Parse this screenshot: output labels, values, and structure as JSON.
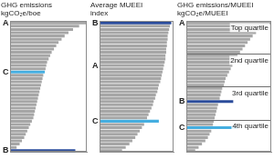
{
  "chart_data": [
    {
      "type": "bar",
      "orientation": "horizontal",
      "title": [
        "GHG emissions",
        "kgCO₂e/boe"
      ],
      "categories": [
        "A",
        null,
        null,
        null,
        null,
        null,
        null,
        null,
        null,
        null,
        null,
        null,
        null,
        null,
        null,
        "C",
        null,
        null,
        null,
        null,
        null,
        null,
        null,
        null,
        null,
        null,
        null,
        null,
        null,
        null,
        null,
        null,
        null,
        null,
        null,
        null,
        null,
        null,
        null,
        "B"
      ],
      "values": [
        100,
        90,
        82,
        76,
        71,
        67,
        63,
        60,
        57,
        54,
        52,
        50,
        48,
        47,
        46,
        45,
        43,
        42,
        41,
        40,
        39,
        38,
        37,
        36,
        35,
        34,
        33,
        32,
        31,
        30,
        28,
        26,
        24,
        22,
        20,
        18,
        15,
        12,
        8,
        85
      ],
      "colors": [
        "#a6a6a6",
        "#a6a6a6",
        "#a6a6a6",
        "#a6a6a6",
        "#a6a6a6",
        "#a6a6a6",
        "#a6a6a6",
        "#a6a6a6",
        "#a6a6a6",
        "#a6a6a6",
        "#a6a6a6",
        "#a6a6a6",
        "#a6a6a6",
        "#a6a6a6",
        "#a6a6a6",
        "#45aee0",
        "#a6a6a6",
        "#a6a6a6",
        "#a6a6a6",
        "#a6a6a6",
        "#a6a6a6",
        "#a6a6a6",
        "#a6a6a6",
        "#a6a6a6",
        "#a6a6a6",
        "#a6a6a6",
        "#a6a6a6",
        "#a6a6a6",
        "#a6a6a6",
        "#a6a6a6",
        "#a6a6a6",
        "#a6a6a6",
        "#a6a6a6",
        "#a6a6a6",
        "#a6a6a6",
        "#a6a6a6",
        "#a6a6a6",
        "#a6a6a6",
        "#a6a6a6",
        "#2b4c9b"
      ],
      "xlim": [
        0,
        100
      ],
      "tick_labels": "y",
      "grid": false
    },
    {
      "type": "bar",
      "orientation": "horizontal",
      "title": [
        "Average MUEEI",
        "index"
      ],
      "categories": [
        "B",
        null,
        null,
        null,
        null,
        null,
        null,
        null,
        null,
        null,
        null,
        null,
        null,
        "A",
        null,
        null,
        null,
        null,
        null,
        null,
        null,
        null,
        null,
        null,
        null,
        null,
        null,
        null,
        null,
        null,
        "C",
        null,
        null,
        null,
        null,
        null,
        null,
        null,
        null,
        null
      ],
      "values": [
        97,
        95,
        94,
        93,
        92,
        92,
        91,
        91,
        90,
        90,
        89,
        89,
        88,
        87,
        86,
        85,
        84,
        83,
        82,
        80,
        79,
        78,
        76,
        75,
        73,
        72,
        70,
        68,
        66,
        64,
        80,
        60,
        57,
        54,
        51,
        48,
        44,
        40,
        35,
        30
      ],
      "colors": [
        "#2b4c9b",
        "#a6a6a6",
        "#a6a6a6",
        "#a6a6a6",
        "#a6a6a6",
        "#a6a6a6",
        "#a6a6a6",
        "#a6a6a6",
        "#a6a6a6",
        "#a6a6a6",
        "#a6a6a6",
        "#a6a6a6",
        "#a6a6a6",
        "#a6a6a6",
        "#a6a6a6",
        "#a6a6a6",
        "#a6a6a6",
        "#a6a6a6",
        "#a6a6a6",
        "#a6a6a6",
        "#a6a6a6",
        "#a6a6a6",
        "#a6a6a6",
        "#a6a6a6",
        "#a6a6a6",
        "#a6a6a6",
        "#a6a6a6",
        "#a6a6a6",
        "#a6a6a6",
        "#a6a6a6",
        "#45aee0",
        "#a6a6a6",
        "#a6a6a6",
        "#a6a6a6",
        "#a6a6a6",
        "#a6a6a6",
        "#a6a6a6",
        "#a6a6a6",
        "#a6a6a6",
        "#a6a6a6"
      ],
      "xlim": [
        0,
        100
      ],
      "tick_labels": "y",
      "grid": false
    },
    {
      "type": "bar",
      "orientation": "horizontal",
      "title": [
        "GHG emissions/MUEEI",
        "kgCO₂e/MUEEI"
      ],
      "categories": [
        "A",
        null,
        null,
        null,
        null,
        null,
        null,
        null,
        null,
        null,
        null,
        null,
        null,
        null,
        null,
        null,
        null,
        null,
        null,
        null,
        null,
        null,
        null,
        null,
        "B",
        null,
        null,
        null,
        null,
        null,
        null,
        null,
        "C",
        null,
        null,
        null,
        null,
        null,
        null,
        null
      ],
      "values": [
        100,
        92,
        86,
        82,
        78,
        75,
        72,
        69,
        66,
        63,
        60,
        58,
        56,
        54,
        52,
        50,
        48,
        46,
        45,
        44,
        42,
        41,
        40,
        39,
        55,
        37,
        36,
        35,
        34,
        33,
        32,
        31,
        60,
        29,
        27,
        25,
        22,
        18,
        14,
        10
      ],
      "colors": [
        "#a6a6a6",
        "#a6a6a6",
        "#a6a6a6",
        "#a6a6a6",
        "#a6a6a6",
        "#a6a6a6",
        "#a6a6a6",
        "#a6a6a6",
        "#a6a6a6",
        "#a6a6a6",
        "#a6a6a6",
        "#a6a6a6",
        "#a6a6a6",
        "#a6a6a6",
        "#a6a6a6",
        "#a6a6a6",
        "#a6a6a6",
        "#a6a6a6",
        "#a6a6a6",
        "#a6a6a6",
        "#a6a6a6",
        "#a6a6a6",
        "#a6a6a6",
        "#a6a6a6",
        "#2b4c9b",
        "#a6a6a6",
        "#a6a6a6",
        "#a6a6a6",
        "#a6a6a6",
        "#a6a6a6",
        "#a6a6a6",
        "#a6a6a6",
        "#45aee0",
        "#a6a6a6",
        "#a6a6a6",
        "#a6a6a6",
        "#a6a6a6",
        "#a6a6a6",
        "#a6a6a6",
        "#a6a6a6"
      ],
      "annotations": [
        "Top quartile",
        "2nd quartile",
        "3rd quartile",
        "4th quartile"
      ],
      "xlim": [
        0,
        100
      ],
      "tick_labels": "y",
      "grid": false
    }
  ]
}
